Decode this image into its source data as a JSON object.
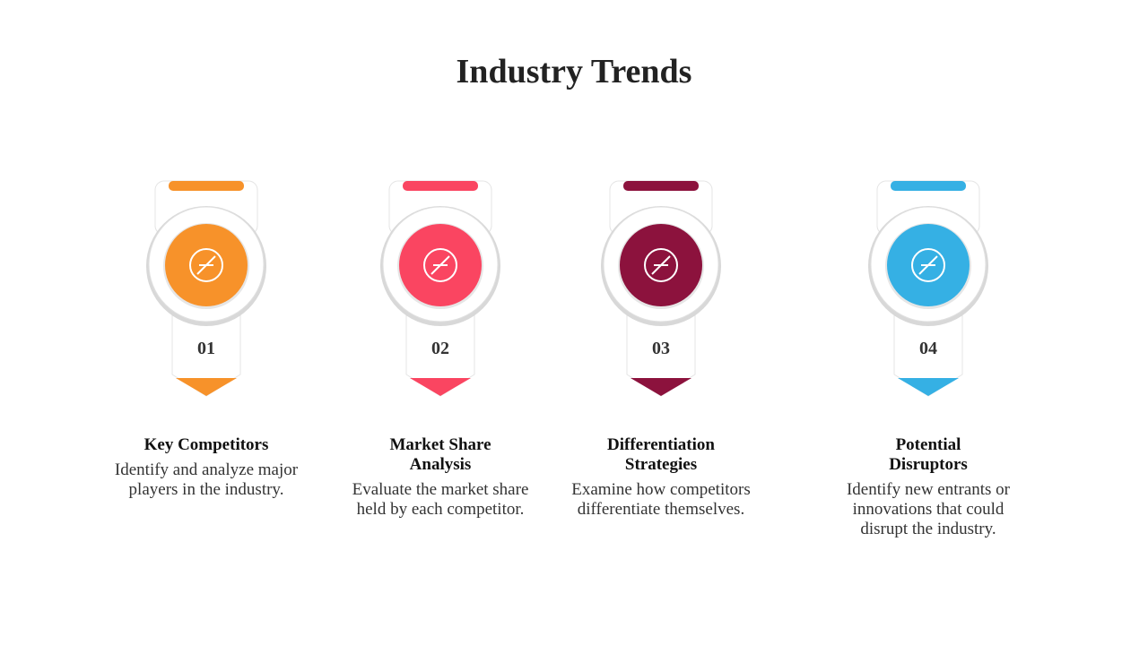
{
  "title": "Industry Trends",
  "items": [
    {
      "number": "01",
      "heading": "Key Competitors",
      "text": "Identify and analyze major players in the industry.",
      "color": "#f7922a"
    },
    {
      "number": "02",
      "heading": "Market Share Analysis",
      "text": "Evaluate the market share held by each competitor.",
      "color": "#fa4561"
    },
    {
      "number": "03",
      "heading": "Differentiation Strategies",
      "text": "Examine how competitors differentiate themselves.",
      "color": "#8c123d"
    },
    {
      "number": "04",
      "heading": "Potential Disruptors",
      "text": "Identify new entrants or innovations that could disrupt the industry.",
      "color": "#35b0e4"
    }
  ]
}
